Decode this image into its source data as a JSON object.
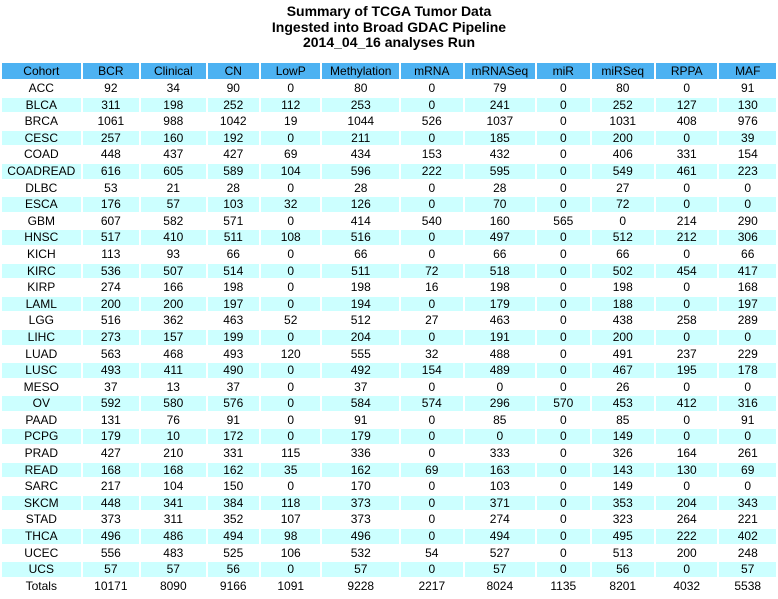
{
  "title": {
    "line1": "Summary of TCGA Tumor Data",
    "line2": "Ingested into Broad GDAC Pipeline",
    "line3": "2014_04_16 analyses Run"
  },
  "colors": {
    "header_bg": "#4db2f2",
    "row_alt_bg": "#ccffff",
    "row_bg": "#ffffff",
    "text": "#000000"
  },
  "chart_data": {
    "type": "table",
    "title": "Summary of TCGA Tumor Data Ingested into Broad GDAC Pipeline 2014_04_16 analyses Run",
    "columns": [
      "Cohort",
      "BCR",
      "Clinical",
      "CN",
      "LowP",
      "Methylation",
      "mRNA",
      "mRNASeq",
      "miR",
      "miRSeq",
      "RPPA",
      "MAF"
    ],
    "rows": [
      [
        "ACC",
        92,
        34,
        90,
        0,
        80,
        0,
        79,
        0,
        80,
        0,
        91
      ],
      [
        "BLCA",
        311,
        198,
        252,
        112,
        253,
        0,
        241,
        0,
        252,
        127,
        130
      ],
      [
        "BRCA",
        1061,
        988,
        1042,
        19,
        1044,
        526,
        1037,
        0,
        1031,
        408,
        976
      ],
      [
        "CESC",
        257,
        160,
        192,
        0,
        211,
        0,
        185,
        0,
        200,
        0,
        39
      ],
      [
        "COAD",
        448,
        437,
        427,
        69,
        434,
        153,
        432,
        0,
        406,
        331,
        154
      ],
      [
        "COADREAD",
        616,
        605,
        589,
        104,
        596,
        222,
        595,
        0,
        549,
        461,
        223
      ],
      [
        "DLBC",
        53,
        21,
        28,
        0,
        28,
        0,
        28,
        0,
        27,
        0,
        0
      ],
      [
        "ESCA",
        176,
        57,
        103,
        32,
        126,
        0,
        70,
        0,
        72,
        0,
        0
      ],
      [
        "GBM",
        607,
        582,
        571,
        0,
        414,
        540,
        160,
        565,
        0,
        214,
        290
      ],
      [
        "HNSC",
        517,
        410,
        511,
        108,
        516,
        0,
        497,
        0,
        512,
        212,
        306
      ],
      [
        "KICH",
        113,
        93,
        66,
        0,
        66,
        0,
        66,
        0,
        66,
        0,
        66
      ],
      [
        "KIRC",
        536,
        507,
        514,
        0,
        511,
        72,
        518,
        0,
        502,
        454,
        417
      ],
      [
        "KIRP",
        274,
        166,
        198,
        0,
        198,
        16,
        198,
        0,
        198,
        0,
        168
      ],
      [
        "LAML",
        200,
        200,
        197,
        0,
        194,
        0,
        179,
        0,
        188,
        0,
        197
      ],
      [
        "LGG",
        516,
        362,
        463,
        52,
        512,
        27,
        463,
        0,
        438,
        258,
        289
      ],
      [
        "LIHC",
        273,
        157,
        199,
        0,
        204,
        0,
        191,
        0,
        200,
        0,
        0
      ],
      [
        "LUAD",
        563,
        468,
        493,
        120,
        555,
        32,
        488,
        0,
        491,
        237,
        229
      ],
      [
        "LUSC",
        493,
        411,
        490,
        0,
        492,
        154,
        489,
        0,
        467,
        195,
        178
      ],
      [
        "MESO",
        37,
        13,
        37,
        0,
        37,
        0,
        0,
        0,
        26,
        0,
        0
      ],
      [
        "OV",
        592,
        580,
        576,
        0,
        584,
        574,
        296,
        570,
        453,
        412,
        316
      ],
      [
        "PAAD",
        131,
        76,
        91,
        0,
        91,
        0,
        85,
        0,
        85,
        0,
        91
      ],
      [
        "PCPG",
        179,
        10,
        172,
        0,
        179,
        0,
        0,
        0,
        149,
        0,
        0
      ],
      [
        "PRAD",
        427,
        210,
        331,
        115,
        336,
        0,
        333,
        0,
        326,
        164,
        261
      ],
      [
        "READ",
        168,
        168,
        162,
        35,
        162,
        69,
        163,
        0,
        143,
        130,
        69
      ],
      [
        "SARC",
        217,
        104,
        150,
        0,
        170,
        0,
        103,
        0,
        149,
        0,
        0
      ],
      [
        "SKCM",
        448,
        341,
        384,
        118,
        373,
        0,
        371,
        0,
        353,
        204,
        343
      ],
      [
        "STAD",
        373,
        311,
        352,
        107,
        373,
        0,
        274,
        0,
        323,
        264,
        221
      ],
      [
        "THCA",
        496,
        486,
        494,
        98,
        496,
        0,
        494,
        0,
        495,
        222,
        402
      ],
      [
        "UCEC",
        556,
        483,
        525,
        106,
        532,
        54,
        527,
        0,
        513,
        200,
        248
      ],
      [
        "UCS",
        57,
        57,
        56,
        0,
        57,
        0,
        57,
        0,
        56,
        0,
        57
      ]
    ],
    "totals": [
      "Totals",
      10171,
      8090,
      9166,
      1091,
      9228,
      2217,
      8024,
      1135,
      8201,
      4032,
      5538
    ],
    "layout": {
      "zebra": "alternate rows light cyan starting with second data row",
      "grid": "white 2px gaps between cells",
      "alignment": "all cells centered"
    }
  }
}
